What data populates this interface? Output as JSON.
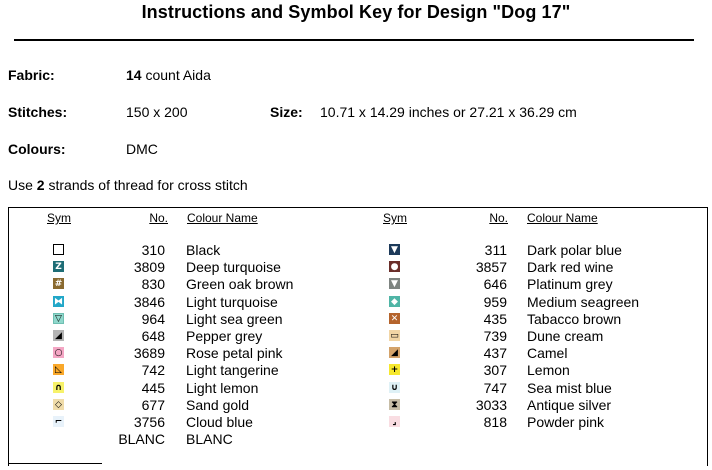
{
  "title": "Instructions and Symbol Key for Design \"Dog 17\"",
  "fabric": {
    "label": "Fabric:",
    "count": "14",
    "rest": "count Aida"
  },
  "stitches": {
    "label": "Stitches:",
    "value": "150 x 200"
  },
  "size": {
    "label": "Size:",
    "value": "10.71 x 14.29 inches or 27.21 x 36.29 cm"
  },
  "colours": {
    "label": "Colours:",
    "value": "DMC"
  },
  "instruction": {
    "pre": "Use",
    "strands": "2",
    "post": "strands of thread for cross stitch"
  },
  "headers": {
    "sym": "Sym",
    "no": "No.",
    "name": "Colour Name"
  },
  "left_rows": [
    {
      "no": "310",
      "name": "Black",
      "color": "#ffffff",
      "border": "#000000",
      "glyph": "",
      "icon": "hollow-square-icon"
    },
    {
      "no": "3809",
      "name": "Deep turquoise",
      "color": "#1e6d76",
      "border": "#1e6d76",
      "glyph": "Z",
      "icon": "z-symbol-icon"
    },
    {
      "no": "830",
      "name": "Green oak brown",
      "color": "#8a6a30",
      "border": "#8a6a30",
      "glyph": "#",
      "icon": "hash-symbol-icon"
    },
    {
      "no": "3846",
      "name": "Light turquoise",
      "color": "#22a7c8",
      "border": "#22a7c8",
      "glyph": "⧓",
      "icon": "bowtie-symbol-icon"
    },
    {
      "no": "964",
      "name": "Light sea green",
      "color": "#8fd8cc",
      "border": "#6fbfb2",
      "glyph": "▽",
      "icon": "triangle-down-icon"
    },
    {
      "no": "648",
      "name": "Pepper grey",
      "color": "#b4b4b4",
      "border": "#b4b4b4",
      "glyph": "◢",
      "icon": "corner-triangle-icon"
    },
    {
      "no": "3689",
      "name": "Rose petal pink",
      "color": "#f4a6c4",
      "border": "#f4a6c4",
      "glyph": "○",
      "icon": "circle-symbol-icon"
    },
    {
      "no": "742",
      "name": "Light tangerine",
      "color": "#f9a82a",
      "border": "#f9a82a",
      "glyph": "◺",
      "icon": "right-triangle-icon"
    },
    {
      "no": "445",
      "name": "Light lemon",
      "color": "#f7f26a",
      "border": "#f7f26a",
      "glyph": "∩",
      "icon": "arch-symbol-icon"
    },
    {
      "no": "677",
      "name": "Sand gold",
      "color": "#f0dcaa",
      "border": "#f0dcaa",
      "glyph": "◇",
      "icon": "diamond-symbol-icon"
    },
    {
      "no": "3756",
      "name": "Cloud blue",
      "color": "#e8f2fa",
      "border": "#e8f2fa",
      "glyph": "⌐",
      "icon": "corner-mark-icon"
    },
    {
      "no": "BLANC",
      "name": "BLANC",
      "color": "#ffffff",
      "border": "#ffffff",
      "glyph": "",
      "icon": "blank-symbol-icon"
    }
  ],
  "right_rows": [
    {
      "no": "311",
      "name": "Dark polar blue",
      "color": "#1d3a5a",
      "border": "#1d3a5a",
      "glyph": "▼",
      "icon": "filled-triangle-icon"
    },
    {
      "no": "3857",
      "name": "Dark red wine",
      "color": "#6a2e2a",
      "border": "#6a2e2a",
      "glyph": "●",
      "icon": "filled-circle-icon"
    },
    {
      "no": "646",
      "name": "Platinum grey",
      "color": "#7e8481",
      "border": "#7e8481",
      "glyph": "▼",
      "icon": "triangle-down-icon"
    },
    {
      "no": "959",
      "name": "Medium seagreen",
      "color": "#4fb5a6",
      "border": "#4fb5a6",
      "glyph": "◆",
      "icon": "diamond-filled-icon"
    },
    {
      "no": "435",
      "name": "Tabacco brown",
      "color": "#b5642c",
      "border": "#b5642c",
      "glyph": "✕",
      "icon": "cross-symbol-icon"
    },
    {
      "no": "739",
      "name": "Dune cream",
      "color": "#f2d5a4",
      "border": "#f2d5a4",
      "glyph": "▭",
      "icon": "rectangle-symbol-icon"
    },
    {
      "no": "437",
      "name": "Camel",
      "color": "#d4a36a",
      "border": "#d4a36a",
      "glyph": "◢",
      "icon": "corner-triangle-icon"
    },
    {
      "no": "307",
      "name": "Lemon",
      "color": "#f6e82e",
      "border": "#f6e82e",
      "glyph": "+",
      "icon": "plus-symbol-icon"
    },
    {
      "no": "747",
      "name": "Sea mist blue",
      "color": "#dff1f6",
      "border": "#dff1f6",
      "glyph": "∪",
      "icon": "cup-symbol-icon"
    },
    {
      "no": "3033",
      "name": "Antique silver",
      "color": "#c7bda6",
      "border": "#c7bda6",
      "glyph": "⧗",
      "icon": "hourglass-symbol-icon"
    },
    {
      "no": "818",
      "name": "Powder pink",
      "color": "#f9dde2",
      "border": "#f9dde2",
      "glyph": "⌟",
      "icon": "corner-mark-icon"
    }
  ]
}
